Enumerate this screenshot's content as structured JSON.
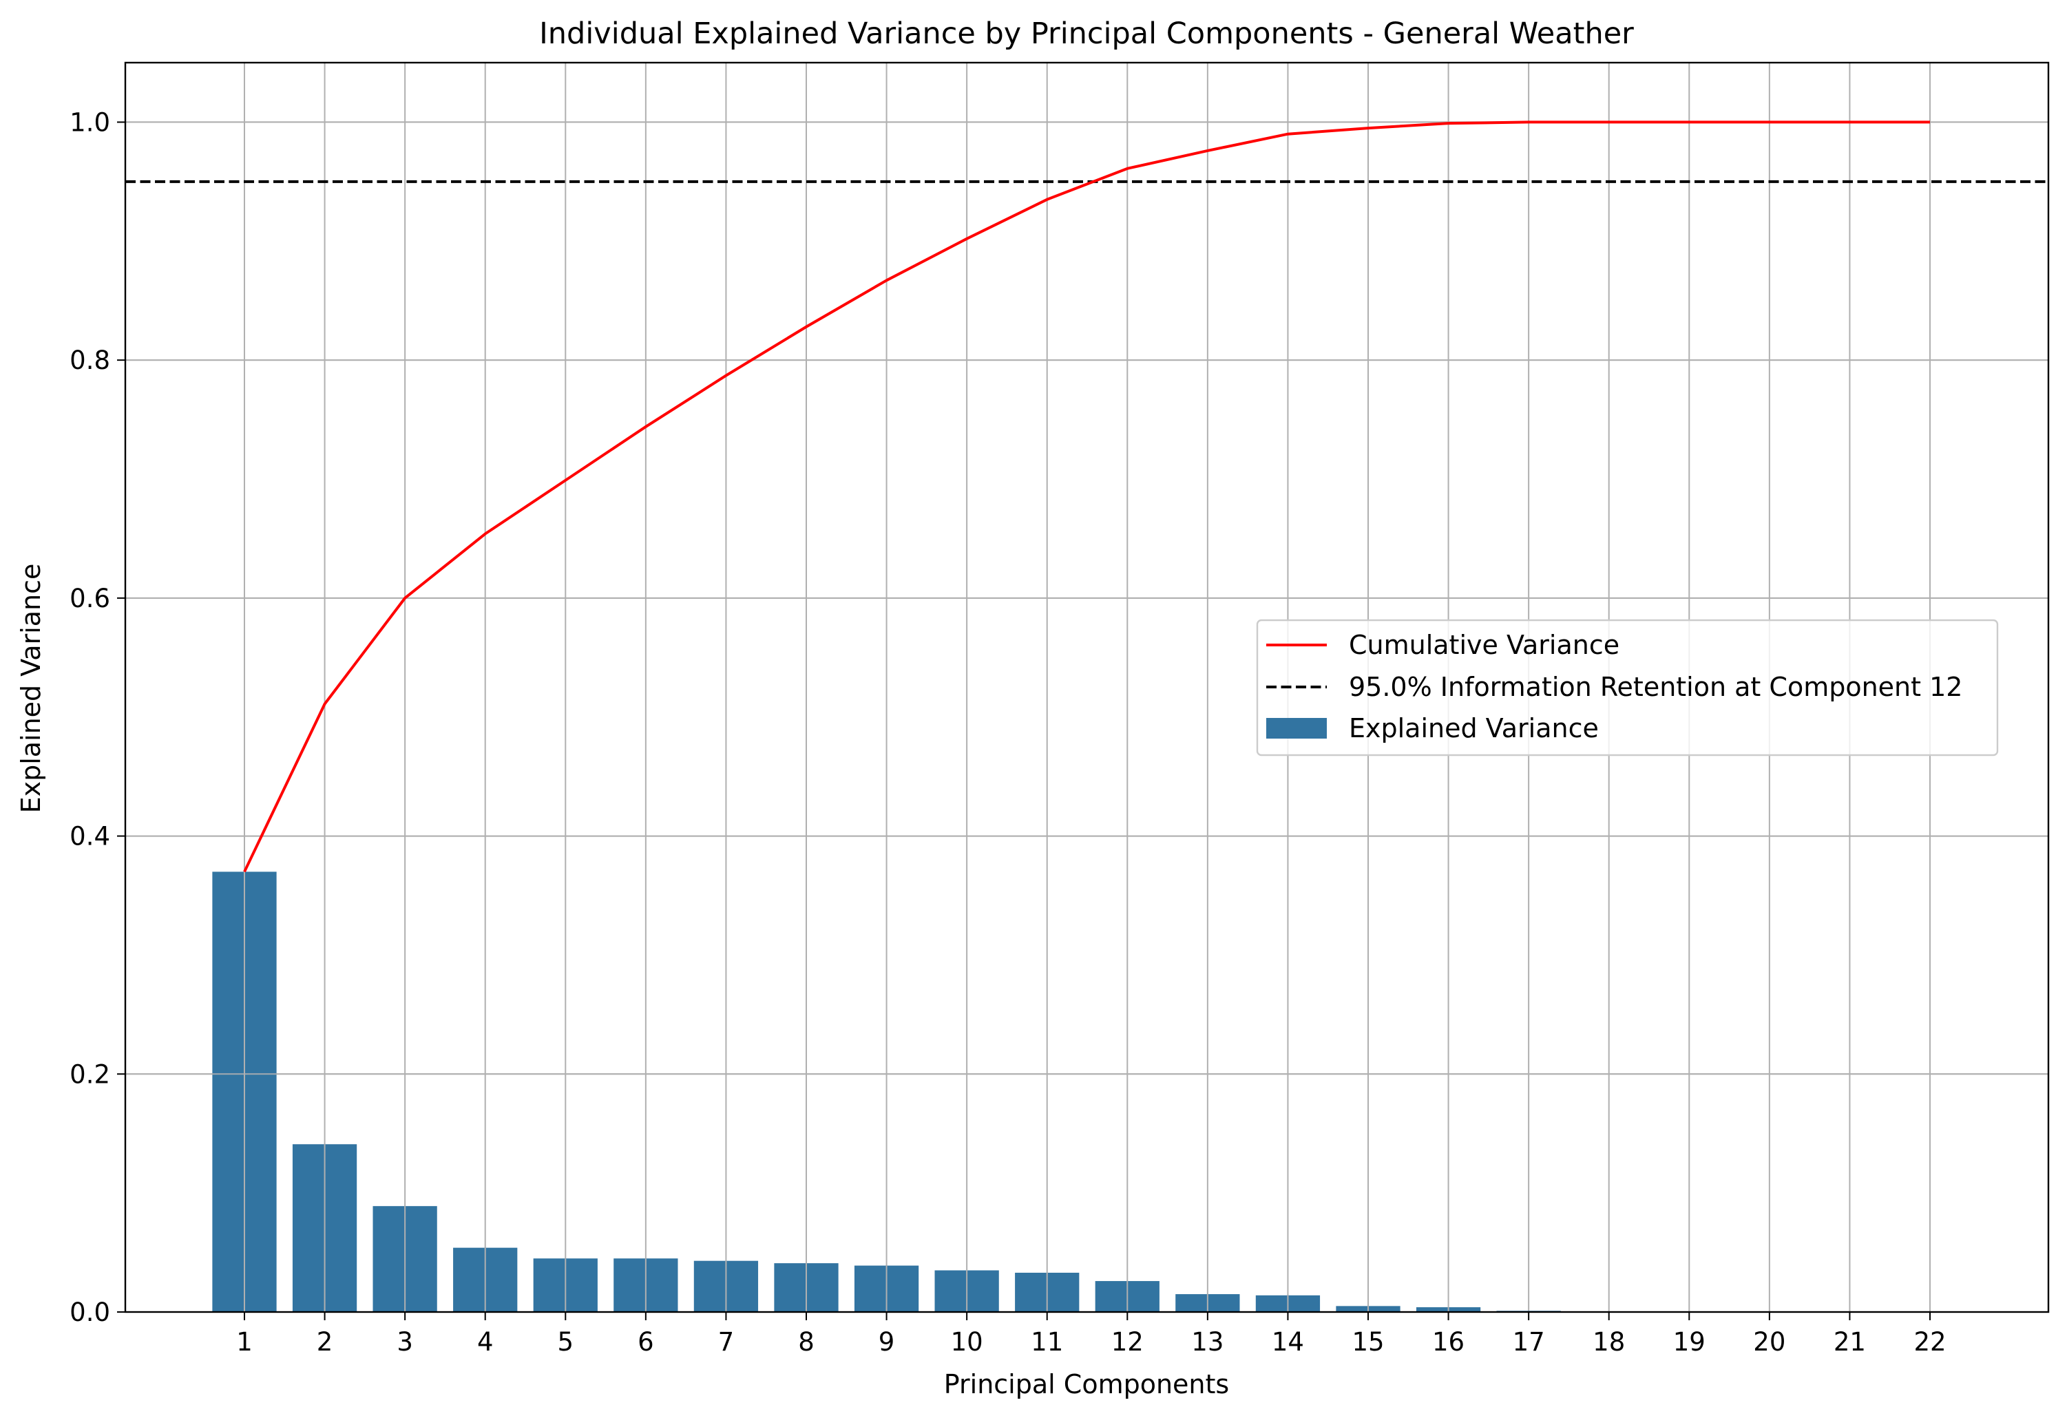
{
  "chart_data": {
    "type": "bar",
    "title": "Individual Explained Variance by Principal Components - General Weather",
    "xlabel": "Principal Components",
    "ylabel": "Explained Variance",
    "categories": [
      "1",
      "2",
      "3",
      "4",
      "5",
      "6",
      "7",
      "8",
      "9",
      "10",
      "11",
      "12",
      "13",
      "14",
      "15",
      "16",
      "17",
      "18",
      "19",
      "20",
      "21",
      "22"
    ],
    "ylim": [
      0,
      1.05
    ],
    "yticks": [
      "0.0",
      "0.2",
      "0.4",
      "0.6",
      "0.8",
      "1.0"
    ],
    "ytick_values": [
      0,
      0.2,
      0.4,
      0.6,
      0.8,
      1.0
    ],
    "grid": true,
    "legend_position": "center-right",
    "series": [
      {
        "name": "Explained Variance",
        "type": "bar",
        "color": "#3274a1",
        "values": [
          0.37,
          0.141,
          0.089,
          0.054,
          0.045,
          0.045,
          0.043,
          0.041,
          0.039,
          0.035,
          0.033,
          0.026,
          0.015,
          0.014,
          0.005,
          0.004,
          0.001,
          0.0005,
          0.0003,
          0.0002,
          0.0001,
          0.0001
        ]
      },
      {
        "name": "Cumulative Variance",
        "type": "line",
        "color": "#ff0000",
        "values": [
          0.37,
          0.511,
          0.6,
          0.654,
          0.699,
          0.744,
          0.787,
          0.828,
          0.867,
          0.902,
          0.935,
          0.961,
          0.976,
          0.99,
          0.995,
          0.999,
          1.0,
          1.0,
          1.0,
          1.0,
          1.0,
          1.0
        ]
      },
      {
        "name": "95.0% Information Retention at Component 12",
        "type": "hline",
        "color": "#000000",
        "value": 0.95
      }
    ],
    "legend": [
      {
        "label": "Cumulative Variance",
        "kind": "line",
        "color": "#ff0000"
      },
      {
        "label": "95.0% Information Retention at Component 12",
        "kind": "dashed",
        "color": "#000000"
      },
      {
        "label": "Explained Variance",
        "kind": "patch",
        "color": "#3274a1"
      }
    ]
  }
}
